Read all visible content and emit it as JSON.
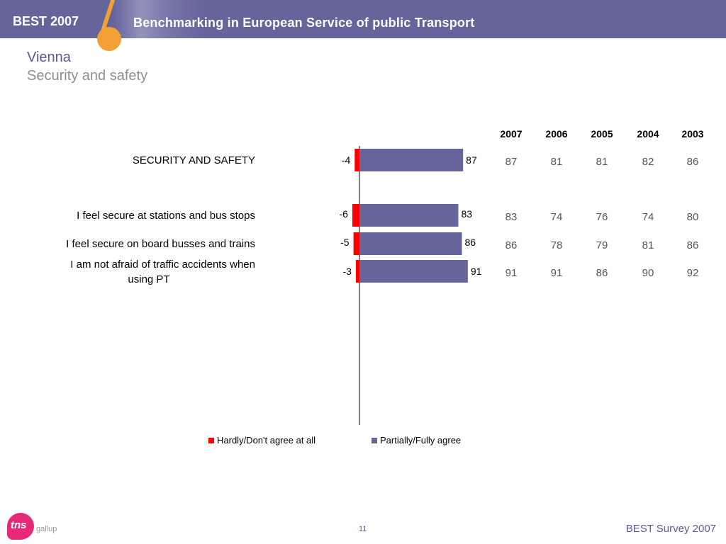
{
  "header": {
    "brand": "BEST 2007",
    "headline": "Benchmarking in European Service of public Transport"
  },
  "title": {
    "city": "Vienna",
    "topic": "Security and safety"
  },
  "chart_data": {
    "type": "bar",
    "orientation": "horizontal-diverging",
    "categories": [
      "SECURITY AND SAFETY",
      "I feel secure at stations and bus stops",
      "I feel secure on board busses and trains",
      "I am not afraid of traffic accidents when using PT"
    ],
    "series": [
      {
        "name": "Hardly/Don't agree at all",
        "color": "#ff0000",
        "values": [
          -4,
          -6,
          -5,
          -3
        ]
      },
      {
        "name": "Partially/Fully agree",
        "color": "#65649b",
        "values": [
          87,
          83,
          86,
          91
        ]
      }
    ],
    "history": {
      "years": [
        "2007",
        "2006",
        "2005",
        "2004",
        "2003"
      ],
      "rows": [
        [
          "87",
          "81",
          "81",
          "82",
          "86"
        ],
        [
          "83",
          "74",
          "76",
          "74",
          "80"
        ],
        [
          "86",
          "78",
          "79",
          "81",
          "86"
        ],
        [
          "91",
          "91",
          "86",
          "90",
          "92"
        ]
      ]
    },
    "legend_position": "bottom",
    "grid": false
  },
  "footer": {
    "logo": "tns",
    "logo_sub": "gallup",
    "page_number": "11",
    "survey": "BEST Survey 2007"
  }
}
